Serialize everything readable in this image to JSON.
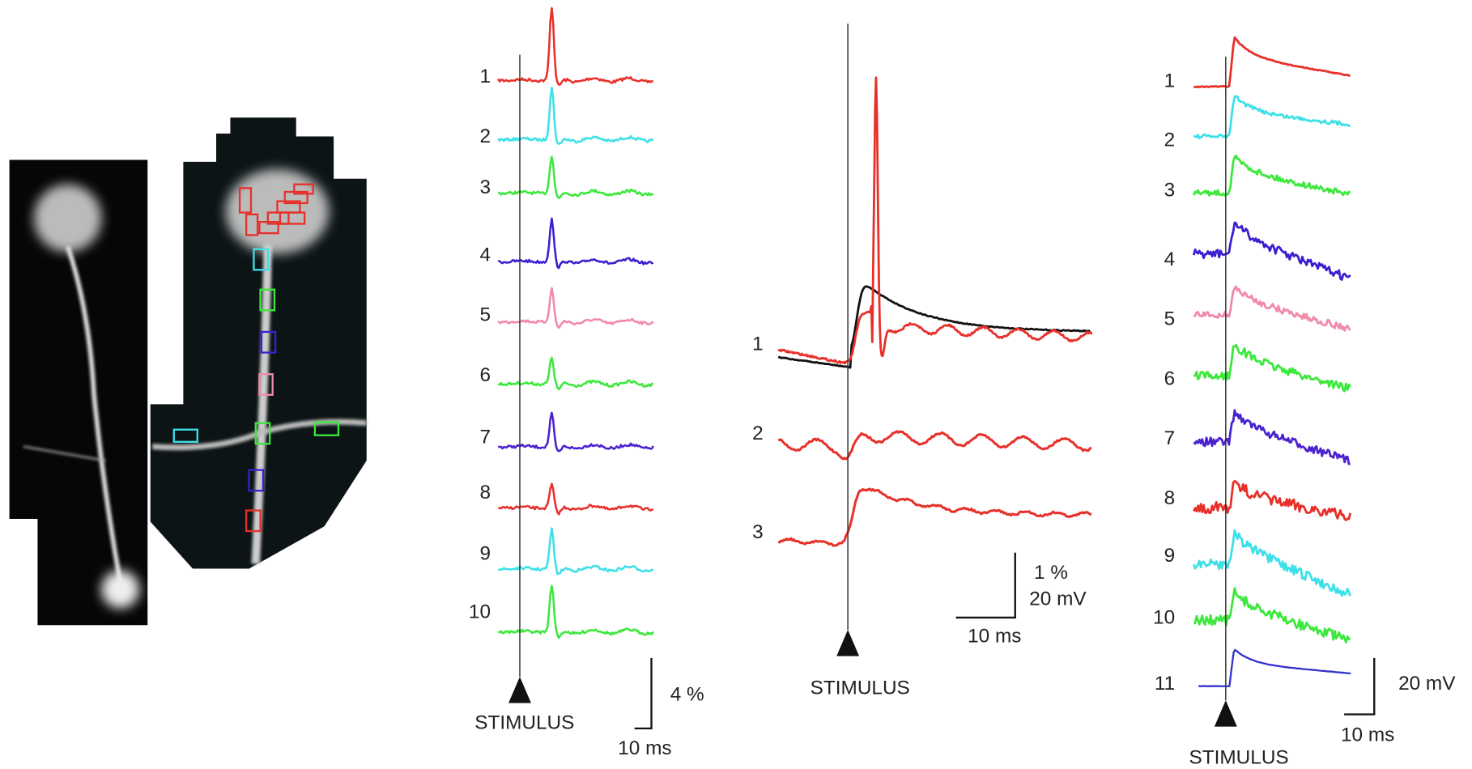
{
  "panels": [
    {
      "traces": [
        {
          "label": "1",
          "color": "#e8302a"
        },
        {
          "label": "2",
          "color": "#3ee0e8"
        },
        {
          "label": "3",
          "color": "#3ce83c"
        },
        {
          "label": "4",
          "color": "#3a1fd0"
        },
        {
          "label": "5",
          "color": "#f08aa8"
        },
        {
          "label": "6",
          "color": "#3ce83c"
        },
        {
          "label": "7",
          "color": "#4a22d0"
        },
        {
          "label": "8",
          "color": "#e8302a"
        },
        {
          "label": "9",
          "color": "#3ee0e8"
        },
        {
          "label": "10",
          "color": "#3ce83c"
        }
      ],
      "stimulus": "STIMULUS",
      "scale_bar": {
        "vertical": "4 %",
        "horizontal": "10 ms"
      }
    },
    {
      "traces": [
        {
          "label": "1",
          "color": "#e8302a",
          "overlay_color": "#111111"
        },
        {
          "label": "2",
          "color": "#e8302a"
        },
        {
          "label": "3",
          "color": "#e8302a"
        }
      ],
      "stimulus": "STIMULUS",
      "scale_bar": {
        "vertical": [
          "1 %",
          "20 mV"
        ],
        "horizontal": "10 ms"
      }
    },
    {
      "traces": [
        {
          "label": "1",
          "color": "#e8302a"
        },
        {
          "label": "2",
          "color": "#3ee0e8"
        },
        {
          "label": "3",
          "color": "#3ce83c"
        },
        {
          "label": "4",
          "color": "#3a1fd0"
        },
        {
          "label": "5",
          "color": "#f08aa8"
        },
        {
          "label": "6",
          "color": "#3ce83c"
        },
        {
          "label": "7",
          "color": "#4a22d0"
        },
        {
          "label": "8",
          "color": "#e8302a"
        },
        {
          "label": "9",
          "color": "#3ee0e8"
        },
        {
          "label": "10",
          "color": "#3ce83c"
        },
        {
          "label": "11",
          "color": "#3333cc"
        }
      ],
      "stimulus": "STIMULUS",
      "scale_bar": {
        "vertical": "20 mV",
        "horizontal": "10 ms"
      }
    }
  ]
}
